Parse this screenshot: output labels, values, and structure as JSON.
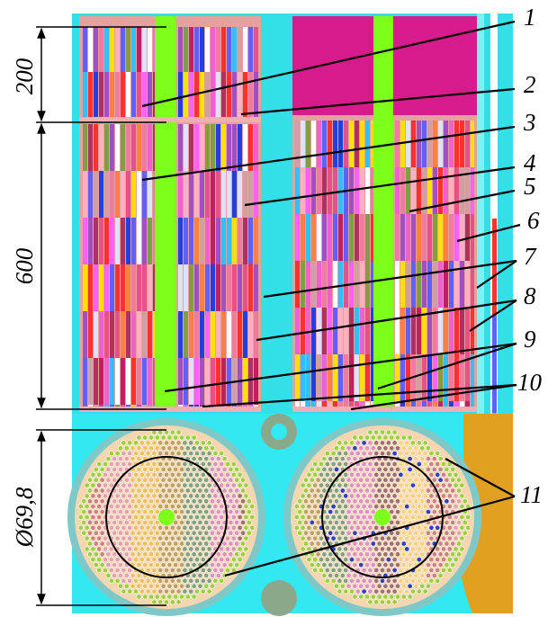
{
  "labels": [
    "1",
    "2",
    "3",
    "4",
    "5",
    "6",
    "7",
    "8",
    "9",
    "10",
    "11"
  ],
  "dimensions": [
    "200",
    "600",
    "Ø69,8"
  ]
}
